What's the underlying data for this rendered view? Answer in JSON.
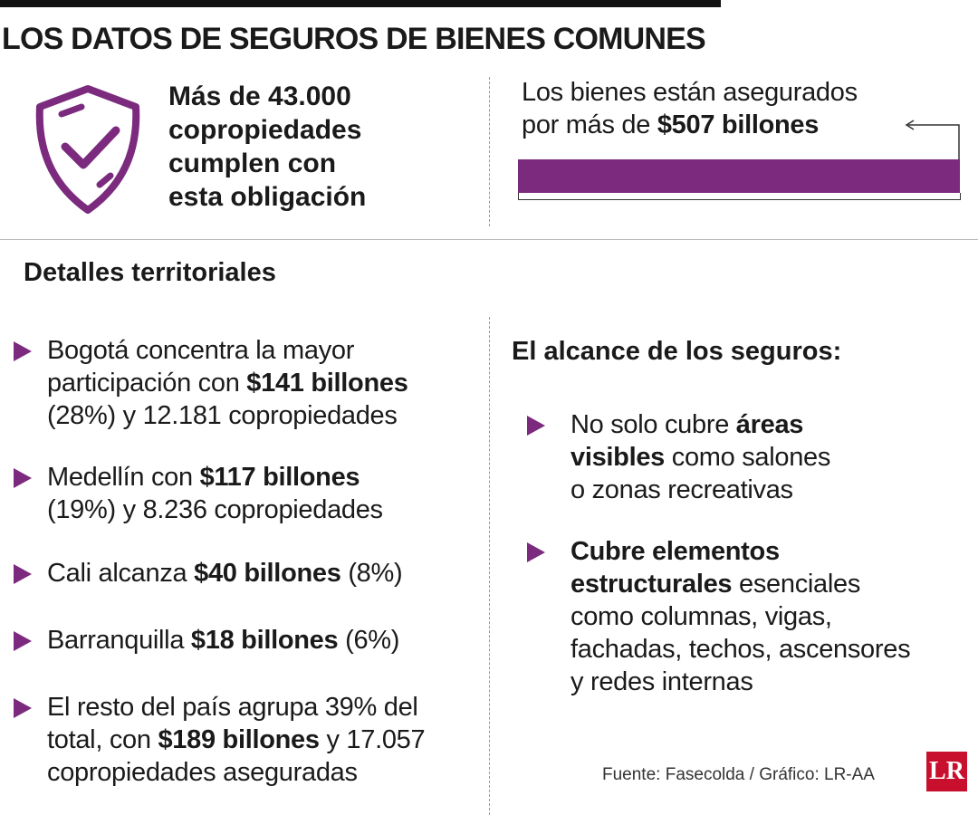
{
  "header": {
    "title": "LOS DATOS DE SEGUROS DE BIENES COMUNES"
  },
  "highlight": {
    "lines": [
      "Más de 43.000",
      "copropiedades",
      "cumplen con",
      "esta obligación"
    ]
  },
  "total": {
    "lines": [
      [
        "Los bienes están asegurados"
      ],
      [
        "por más de ",
        {
          "text": "$507 billones",
          "bold": true
        }
      ]
    ]
  },
  "territorial": {
    "title": "Detalles territoriales",
    "items": [
      [
        [
          "Bogotá concentra la mayor"
        ],
        [
          "participación con ",
          {
            "text": "$141 billones",
            "bold": true
          }
        ],
        [
          "(28%) y 12.181 copropiedades"
        ]
      ],
      [
        [
          "Medellín con ",
          {
            "text": "$117 billones",
            "bold": true
          }
        ],
        [
          "(19%) y 8.236 copropiedades"
        ]
      ],
      [
        [
          "Cali alcanza ",
          {
            "text": "$40 billones",
            "bold": true
          },
          " (8%)"
        ]
      ],
      [
        [
          "Barranquilla ",
          {
            "text": "$18 billones",
            "bold": true
          },
          " (6%)"
        ]
      ],
      [
        [
          "El resto del país agrupa 39% del"
        ],
        [
          "total, con ",
          {
            "text": "$189 billones",
            "bold": true
          },
          " y 17.057"
        ],
        [
          "copropiedades aseguradas"
        ]
      ]
    ]
  },
  "scope": {
    "title": "El alcance de los seguros:",
    "items": [
      [
        [
          "No solo cubre ",
          {
            "text": "áreas",
            "bold": true
          }
        ],
        [
          {
            "text": "visibles",
            "bold": true
          },
          " como salones"
        ],
        [
          "o zonas recreativas"
        ]
      ],
      [
        [
          {
            "text": "Cubre elementos",
            "bold": true
          }
        ],
        [
          {
            "text": "estructurales",
            "bold": true
          },
          " esenciales"
        ],
        [
          "como columnas, vigas,"
        ],
        [
          "fachadas, techos, ascensores"
        ],
        [
          "y redes internas"
        ]
      ]
    ]
  },
  "source": "Fuente: Fasecolda / Gráfico: LR-AA",
  "logo": "LR"
}
